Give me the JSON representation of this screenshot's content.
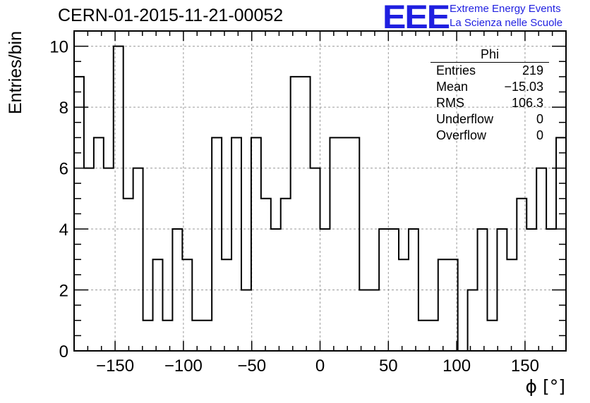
{
  "header": {
    "run_title": "CERN-01-2015-11-21-00052",
    "logo_text": "EEE",
    "logo_line1": "Extreme Energy Events",
    "logo_line2": "La Scienza nelle Scuole"
  },
  "stats": {
    "title": "Phi",
    "rows": [
      {
        "label": "Entries",
        "value": "219"
      },
      {
        "label": "Mean",
        "value": "−15.03"
      },
      {
        "label": "RMS",
        "value": "106.3"
      },
      {
        "label": "Underflow",
        "value": "0"
      },
      {
        "label": "Overflow",
        "value": "0"
      }
    ]
  },
  "chart_data": {
    "type": "bar",
    "style": "step-histogram",
    "xlabel": "ϕ [°]",
    "ylabel": "Entries/bin",
    "xlim": [
      -180,
      180
    ],
    "ylim": [
      0,
      10.5
    ],
    "bin_width": 7.2,
    "x_ticks": [
      -150,
      -100,
      -50,
      0,
      50,
      100,
      150
    ],
    "x_tick_labels": [
      "−150",
      "−100",
      "−50",
      "0",
      "50",
      "100",
      "150"
    ],
    "y_ticks": [
      0,
      2,
      4,
      6,
      8,
      10
    ],
    "y_tick_labels": [
      "0",
      "2",
      "4",
      "6",
      "8",
      "10"
    ],
    "grid": true,
    "values": [
      9,
      6,
      7,
      6,
      10,
      5,
      6,
      1,
      3,
      1,
      4,
      3,
      1,
      1,
      7,
      3,
      7,
      2,
      7,
      5,
      4,
      5,
      9,
      9,
      6,
      4,
      7,
      7,
      7,
      2,
      2,
      4,
      4,
      3,
      4,
      1,
      1,
      3,
      3,
      0,
      2,
      4,
      1,
      4,
      3,
      5,
      4,
      6,
      4,
      7
    ],
    "colors": {
      "line": "#000000",
      "grid": "#9a9a9a",
      "logo": "#1f1fe0"
    }
  }
}
